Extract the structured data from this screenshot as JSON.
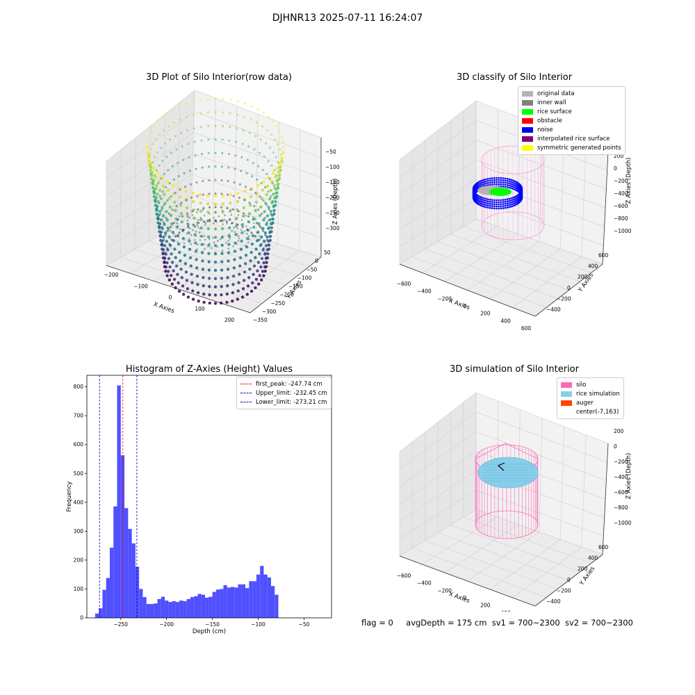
{
  "figure": {
    "suptitle": "DJHNR13 2025-07-11 16:24:07",
    "footer": {
      "flag": "flag = 0",
      "avg_depth": "avgDepth = 175 cm",
      "sv1": "sv1 = 700~2300",
      "sv2": "sv2 = 700~2300"
    }
  },
  "chart_data": [
    {
      "type": "scatter",
      "title": "3D Plot of Silo Interior(row data)",
      "xlabel": "X Axies",
      "ylabel": "Y Axies",
      "zlabel": "Z Axies (Depth)",
      "xticks": [
        "−200",
        "−100",
        "0",
        "100",
        "200"
      ],
      "yticks": [
        "50",
        "0",
        "−50",
        "−100",
        "−150",
        "−200",
        "−250",
        "−300",
        "−350"
      ],
      "zticks": [
        "−50",
        "−100",
        "−150",
        "−200",
        "−250",
        "−300"
      ],
      "colormap": "viridis"
    },
    {
      "type": "scatter",
      "title": "3D classify of Silo Interior",
      "xlabel": "X Axies",
      "ylabel": "Y Axies",
      "zlabel": "Z Axies (Depth)",
      "xticks": [
        "−600",
        "−400",
        "−200",
        "0",
        "200",
        "400",
        "600"
      ],
      "yticks": [
        "600",
        "400",
        "200",
        "0",
        "−200",
        "−400"
      ],
      "zticks": [
        "200",
        "0",
        "−200",
        "−400",
        "−600",
        "−800",
        "−1000"
      ],
      "legend": [
        {
          "label": "original data",
          "color": "#b4b4b4"
        },
        {
          "label": "inner wall",
          "color": "#808080"
        },
        {
          "label": "rice surface",
          "color": "#00ff00"
        },
        {
          "label": "obstacle",
          "color": "#ff0000"
        },
        {
          "label": "noise",
          "color": "#0000ff"
        },
        {
          "label": "interpolated rice surface",
          "color": "#800080"
        },
        {
          "label": "symmetric generated points",
          "color": "#ffff00"
        }
      ]
    },
    {
      "type": "bar",
      "title": "Histogram of Z-Axies (Height) Values",
      "xlabel": "Depth (cm)",
      "ylabel": "Frequency",
      "xlim": [
        -287,
        -20
      ],
      "ylim": [
        0,
        840
      ],
      "xticks": [
        -250,
        -200,
        -150,
        -100,
        -50
      ],
      "xtick_labels": [
        "−250",
        "−200",
        "−150",
        "−100",
        "−50"
      ],
      "yticks": [
        0,
        100,
        200,
        300,
        400,
        500,
        600,
        700,
        800
      ],
      "bin_start": -278,
      "bin_width": 4,
      "values": [
        15,
        33,
        97,
        138,
        243,
        386,
        805,
        563,
        380,
        308,
        258,
        177,
        100,
        72,
        48,
        48,
        50,
        65,
        73,
        60,
        55,
        58,
        55,
        60,
        58,
        65,
        72,
        75,
        83,
        80,
        70,
        73,
        90,
        98,
        100,
        113,
        105,
        107,
        105,
        116,
        116,
        103,
        127,
        127,
        150,
        180,
        150,
        140,
        110,
        80
      ],
      "bar_color": "#5050ff",
      "lines": [
        {
          "label": "first_peak: -247.74 cm",
          "x": -247.74,
          "color": "#ff0000"
        },
        {
          "label": "Upper_limit: -232.45 cm",
          "x": -232.45,
          "color": "#0000aa"
        },
        {
          "label": "Lower_limit: -273.21 cm",
          "x": -273.21,
          "color": "#0000aa"
        }
      ]
    },
    {
      "type": "scatter",
      "title": "3D simulation of Silo Interior",
      "xlabel": "X Axies",
      "ylabel": "Y Axies",
      "zlabel": "Z Axies (Depth)",
      "xticks": [
        "−600",
        "−400",
        "−200",
        "0",
        "200",
        "400",
        "600"
      ],
      "yticks": [
        "600",
        "400",
        "200",
        "0",
        "−200",
        "−400"
      ],
      "zticks": [
        "200",
        "0",
        "−200",
        "−400",
        "−600",
        "−800",
        "−1000"
      ],
      "legend": [
        {
          "label": "silo",
          "color": "#ff69b4"
        },
        {
          "label": "rice simulation",
          "color": "#87ceeb"
        },
        {
          "label": "auger",
          "color": "#ff4500"
        },
        {
          "label": "center(-7,163)",
          "color": ""
        }
      ]
    }
  ]
}
